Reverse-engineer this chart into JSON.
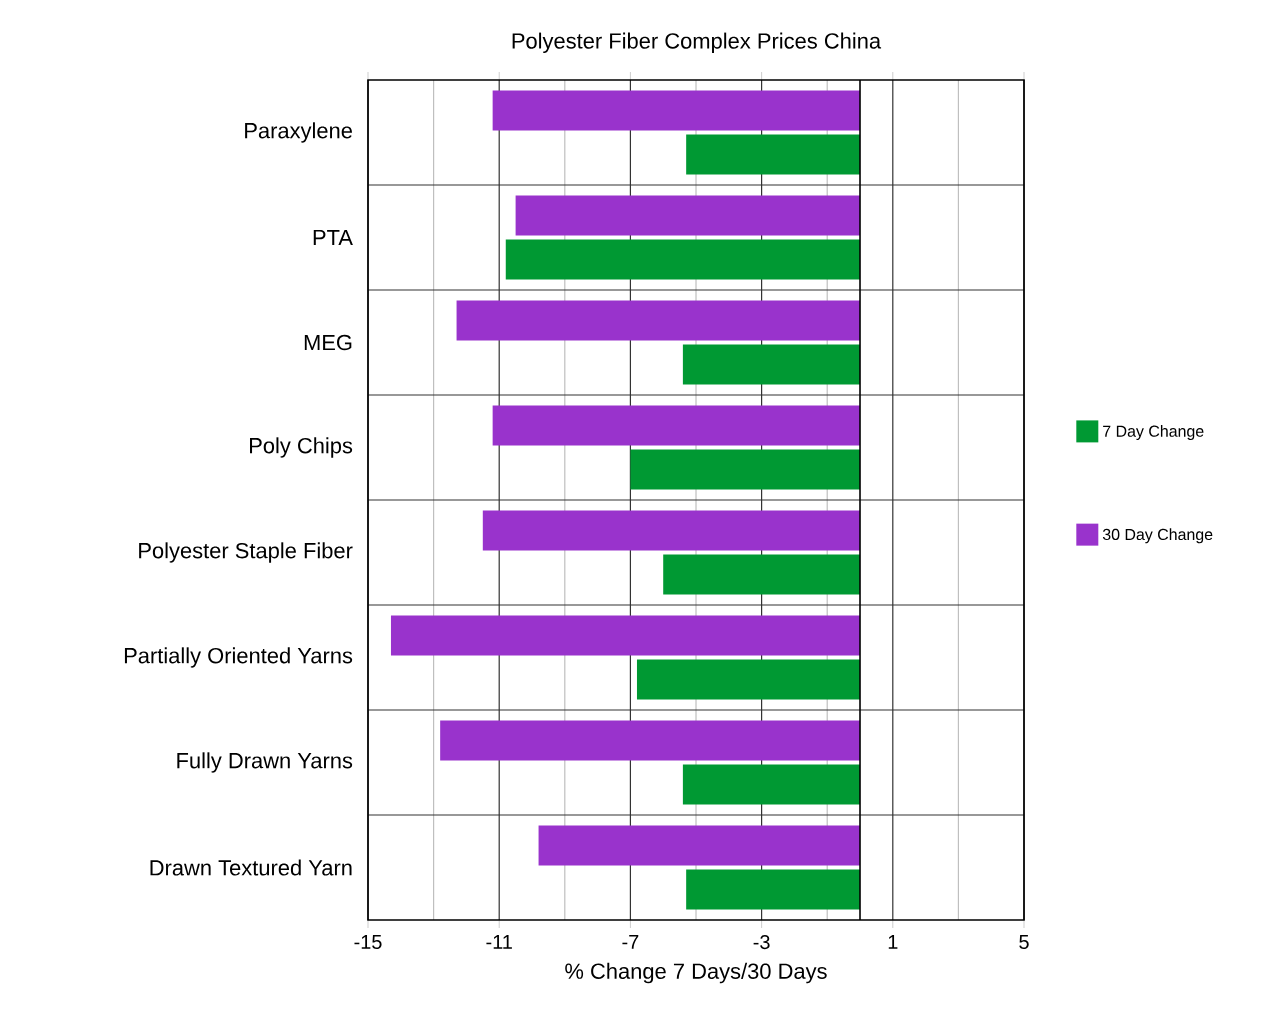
{
  "chart_data": {
    "type": "bar",
    "orientation": "horizontal",
    "title": "Polyester Fiber Complex Prices China",
    "xlabel": "% Change 7 Days/30 Days",
    "categories": [
      "Paraxylene",
      "PTA",
      "MEG",
      "Poly Chips",
      "Polyester Staple Fiber",
      "Partially Oriented Yarns",
      "Fully Drawn Yarns",
      "Drawn Textured Yarn"
    ],
    "series": [
      {
        "name": "7 Day Change",
        "color": "#009933",
        "values": [
          -5.3,
          -10.8,
          -5.4,
          -7.0,
          -6.0,
          -6.8,
          -5.4,
          -5.3
        ]
      },
      {
        "name": "30 Day Change",
        "color": "#9933cc",
        "values": [
          -11.2,
          -10.5,
          -12.3,
          -11.2,
          -11.5,
          -14.3,
          -12.8,
          -9.8
        ]
      }
    ],
    "xlim": [
      -15,
      5
    ],
    "xticks": [
      -15,
      -11,
      -7,
      -3,
      1,
      5
    ],
    "grid": true,
    "legend": "right"
  }
}
